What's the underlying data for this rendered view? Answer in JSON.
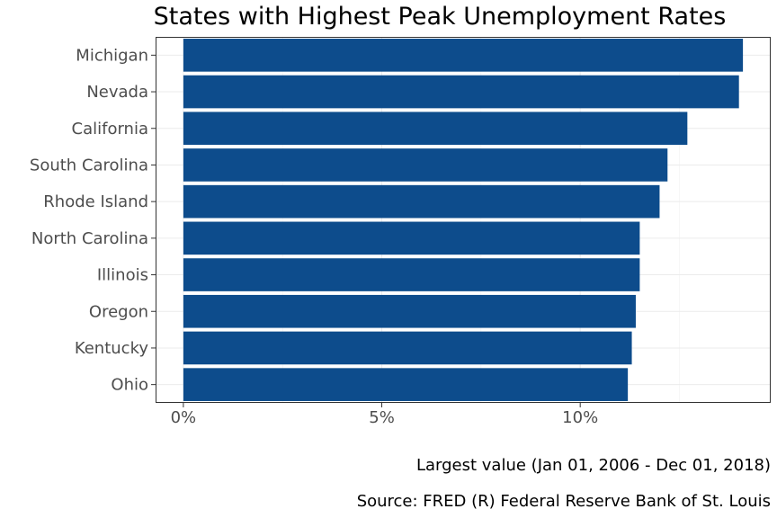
{
  "chart_data": {
    "type": "bar",
    "orientation": "horizontal",
    "title": "States with Highest Peak Unemployment Rates",
    "xlabel": "",
    "ylabel": "",
    "categories": [
      "Michigan",
      "Nevada",
      "California",
      "South Carolina",
      "Rhode Island",
      "North Carolina",
      "Illinois",
      "Oregon",
      "Kentucky",
      "Ohio"
    ],
    "values": [
      14.1,
      14.0,
      12.7,
      12.2,
      12.0,
      11.5,
      11.5,
      11.4,
      11.3,
      11.2
    ],
    "xlim": [
      -0.7,
      14.8
    ],
    "x_ticks": [
      0,
      5,
      10
    ],
    "x_tick_labels": [
      "0%",
      "5%",
      "10%"
    ],
    "grid": true,
    "bar_color": "#0d4c8c",
    "captions": [
      "Largest value (Jan 01, 2006 - Dec 01, 2018)",
      "Source: FRED (R) Federal Reserve Bank of St. Louis"
    ]
  }
}
